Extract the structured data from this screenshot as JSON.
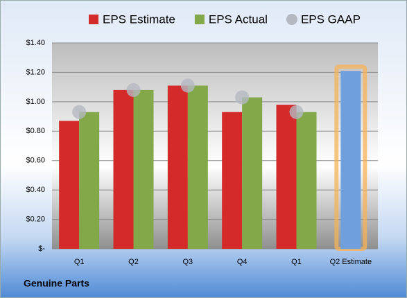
{
  "chart_data": {
    "type": "bar",
    "company": "Genuine Parts",
    "categories": [
      "Q1",
      "Q2",
      "Q3",
      "Q4",
      "Q1",
      "Q2 Estimate"
    ],
    "series": [
      {
        "name": "EPS Estimate",
        "color": "#d42a2a",
        "point_colors": [
          "#d42a2a",
          "#d42a2a",
          "#d42a2a",
          "#d42a2a",
          "#d42a2a",
          "#6f9fdc"
        ],
        "values": [
          0.87,
          1.08,
          1.11,
          0.93,
          0.98,
          1.21
        ]
      },
      {
        "name": "EPS Actual",
        "color": "#82a84a",
        "values": [
          0.93,
          1.08,
          1.11,
          1.03,
          0.93,
          null
        ]
      },
      {
        "name": "EPS GAAP",
        "color": "#b4b8c0",
        "marker": "circle",
        "values": [
          0.93,
          1.08,
          1.11,
          1.03,
          0.93,
          null
        ]
      }
    ],
    "highlight_index": 5,
    "highlight_color": "#f5b25a",
    "ylim": [
      0,
      1.4
    ],
    "yticks": [
      {
        "value": 0,
        "label": "$-"
      },
      {
        "value": 0.2,
        "label": "$0.20"
      },
      {
        "value": 0.4,
        "label": "$0.40"
      },
      {
        "value": 0.6,
        "label": "$0.60"
      },
      {
        "value": 0.8,
        "label": "$0.80"
      },
      {
        "value": 1.0,
        "label": "$1.00"
      },
      {
        "value": 1.2,
        "label": "$1.20"
      },
      {
        "value": 1.4,
        "label": "$1.40"
      }
    ],
    "grid": true
  }
}
